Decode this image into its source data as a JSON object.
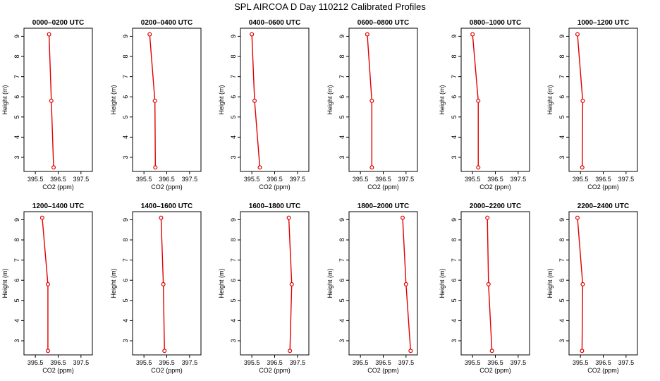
{
  "title": "SPL AIRCOA D  Day 110212  Calibrated Profiles",
  "colors": {
    "series": "#e00000",
    "axis": "#000000"
  },
  "chart_data": {
    "type": "line",
    "layout": "2x6 panels",
    "xlabel": "CO2 (ppm)",
    "ylabel": "Height (m)",
    "xlim": [
      395.0,
      398.0
    ],
    "ylim": [
      2.3,
      9.4
    ],
    "xticks": [
      "395.5",
      "396.5",
      "397.5"
    ],
    "yticks": [
      "3",
      "4",
      "5",
      "6",
      "7",
      "8",
      "9"
    ],
    "heights": [
      9.1,
      5.8,
      2.5
    ],
    "panels": [
      {
        "title": "0000–0200 UTC",
        "co2": [
          396.1,
          396.2,
          396.3
        ]
      },
      {
        "title": "0200–0400 UTC",
        "co2": [
          395.75,
          395.98,
          396.0
        ]
      },
      {
        "title": "0400–0600 UTC",
        "co2": [
          395.5,
          395.62,
          395.85
        ]
      },
      {
        "title": "0600–0800 UTC",
        "co2": [
          395.8,
          396.0,
          396.0
        ]
      },
      {
        "title": "0800–1000 UTC",
        "co2": [
          395.5,
          395.75,
          395.75
        ]
      },
      {
        "title": "1000–1200 UTC",
        "co2": [
          395.37,
          395.6,
          395.58
        ]
      },
      {
        "title": "1200–1400 UTC",
        "co2": [
          395.8,
          396.05,
          396.05
        ]
      },
      {
        "title": "1400–1600 UTC",
        "co2": [
          396.25,
          396.35,
          396.4
        ]
      },
      {
        "title": "1600–1800 UTC",
        "co2": [
          397.12,
          397.25,
          397.17
        ]
      },
      {
        "title": "1800–2000 UTC",
        "co2": [
          397.35,
          397.5,
          397.7
        ]
      },
      {
        "title": "2000–2200 UTC",
        "co2": [
          396.15,
          396.2,
          396.35
        ]
      },
      {
        "title": "2200–2400 UTC",
        "co2": [
          395.37,
          395.6,
          395.57
        ]
      }
    ]
  }
}
